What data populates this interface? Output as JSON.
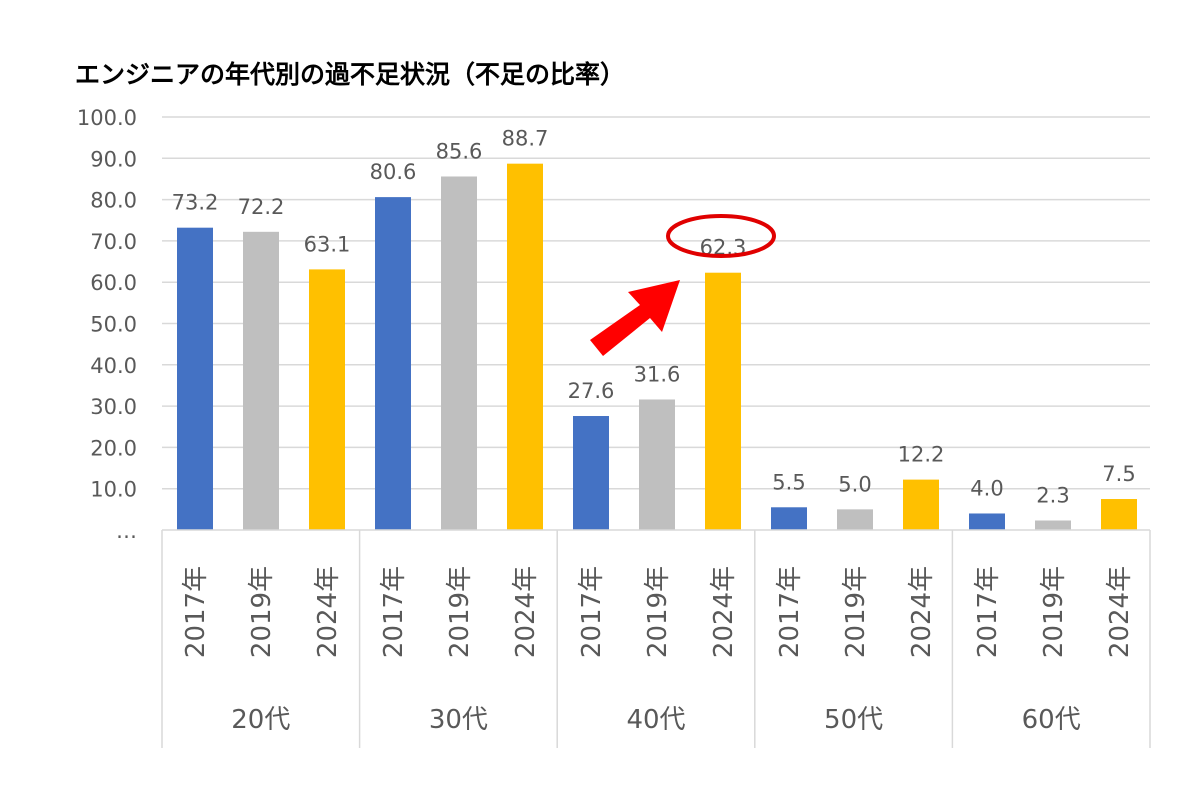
{
  "chart_data": {
    "type": "bar",
    "title": "エンジニアの年代別の過不足状況（不足の比率）",
    "xlabel": "",
    "ylabel": "",
    "ylim": [
      0,
      100
    ],
    "yticks": [
      "…",
      "10.0",
      "20.0",
      "30.0",
      "40.0",
      "50.0",
      "60.0",
      "70.0",
      "80.0",
      "90.0",
      "100.0"
    ],
    "groups": [
      "20代",
      "30代",
      "40代",
      "50代",
      "60代"
    ],
    "series_names": [
      "2017年",
      "2019年",
      "2024年"
    ],
    "series": [
      {
        "name": "2017年",
        "color": "#4472C4",
        "values": [
          73.2,
          80.6,
          27.6,
          5.5,
          4.0
        ],
        "labels": [
          "73.2",
          "80.6",
          "27.6",
          "5.5",
          "4.0"
        ]
      },
      {
        "name": "2019年",
        "color": "#BFBFBF",
        "values": [
          72.2,
          85.6,
          31.6,
          5.0,
          2.3
        ],
        "labels": [
          "72.2",
          "85.6",
          "31.6",
          "5.0",
          "2.3"
        ]
      },
      {
        "name": "2024年",
        "color": "#FFC000",
        "values": [
          63.1,
          88.7,
          62.3,
          12.2,
          7.5
        ],
        "labels": [
          "63.1",
          "88.7",
          "62.3",
          "12.2",
          "7.5"
        ]
      }
    ],
    "grid": true,
    "legend": "none",
    "annotations": [
      {
        "type": "ellipse-highlight",
        "target": "40代 2024年",
        "color": "#E00000"
      },
      {
        "type": "arrow",
        "from": "40代 2019年",
        "to": "40代 2024年",
        "color": "#FF0000"
      }
    ]
  }
}
